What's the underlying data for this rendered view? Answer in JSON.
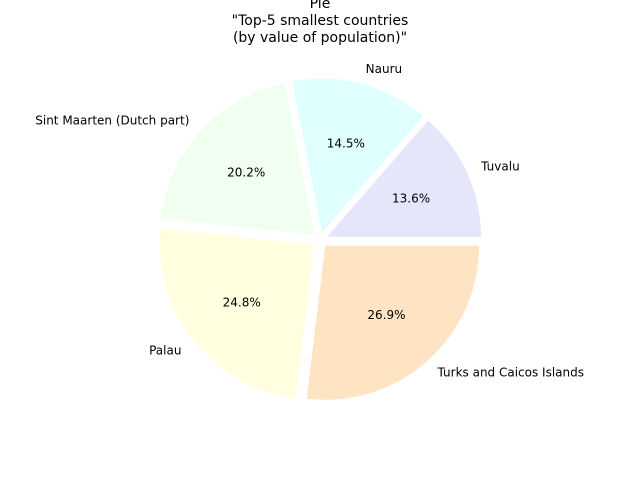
{
  "chart_data": {
    "type": "pie",
    "title": "Pie\n\"Top-5 smallest countries\n(by value of population)\"",
    "labels": [
      "Tuvalu",
      "Nauru",
      "Sint Maarten (Dutch part)",
      "Palau",
      "Turks and Caicos Islands"
    ],
    "percent_labels": [
      "13.6%",
      "14.5%",
      "20.2%",
      "24.8%",
      "26.9%"
    ],
    "values": [
      13.6,
      14.5,
      20.2,
      24.8,
      26.9
    ],
    "colors": [
      "#e6e6fa",
      "#e0ffff",
      "#f0fff0",
      "#ffffe0",
      "#ffe4c4"
    ],
    "start_angle": 0,
    "direction": "counterclockwise",
    "legend": "none"
  }
}
